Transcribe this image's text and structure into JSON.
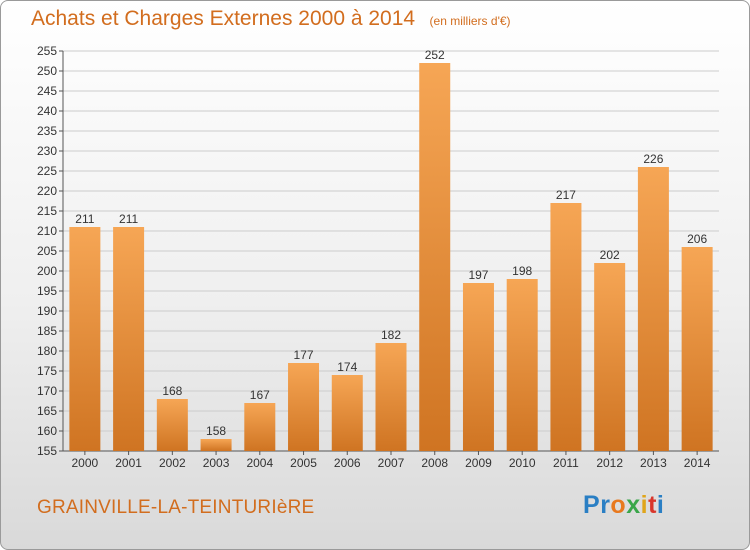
{
  "header": {
    "title": "Achats et Charges Externes 2000 à 2014",
    "unit": "(en milliers d'€)"
  },
  "footer": {
    "commune": "GRAINVILLE-LA-TEINTURIèRE",
    "brand_letters": [
      {
        "char": "P",
        "color": "#2a7fc4"
      },
      {
        "char": "r",
        "color": "#2a7fc4"
      },
      {
        "char": "o",
        "color": "#e8791e"
      },
      {
        "char": "x",
        "color": "#3aa64a"
      },
      {
        "char": "i",
        "color": "#e0a51a"
      },
      {
        "char": "t",
        "color": "#d9362b"
      },
      {
        "char": "i",
        "color": "#2a7fc4"
      }
    ]
  },
  "colors": {
    "accent": "#d26d1e",
    "bar_light": "#f6a655",
    "bar_dark": "#cf7422",
    "grid": "#cccccc",
    "text": "#333333"
  },
  "chart_data": {
    "type": "bar",
    "categories": [
      "2000",
      "2001",
      "2002",
      "2003",
      "2004",
      "2005",
      "2006",
      "2007",
      "2008",
      "2009",
      "2010",
      "2011",
      "2012",
      "2013",
      "2014"
    ],
    "values": [
      211,
      211,
      168,
      158,
      167,
      177,
      174,
      182,
      252,
      197,
      198,
      217,
      202,
      226,
      206
    ],
    "ylim": [
      155,
      255
    ],
    "yticks": [
      155,
      160,
      165,
      170,
      175,
      180,
      185,
      190,
      195,
      200,
      205,
      210,
      215,
      220,
      225,
      230,
      235,
      240,
      245,
      250,
      255
    ],
    "grid": true,
    "data_labels": true
  }
}
